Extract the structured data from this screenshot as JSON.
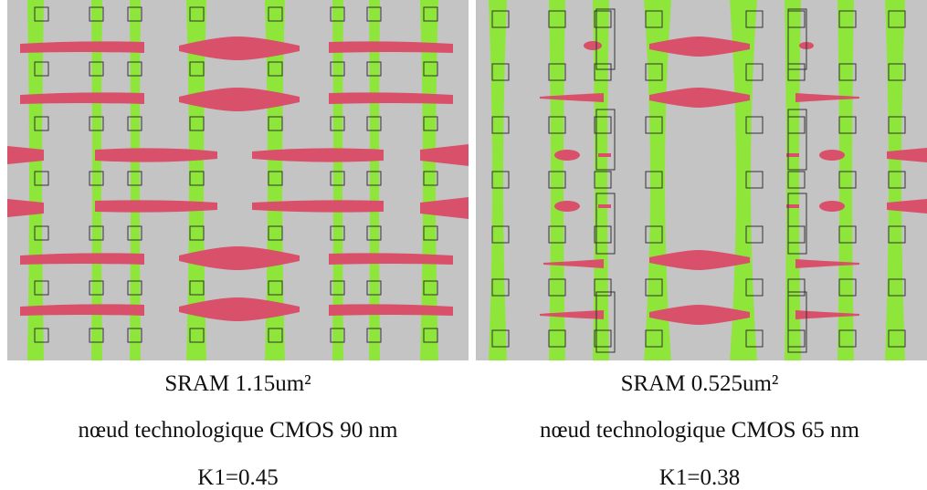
{
  "panels": [
    {
      "title": "SRAM 1.15um²",
      "node": "nœud technologique CMOS 90 nm",
      "k1": "K1=0.45"
    },
    {
      "title": "SRAM 0.525um²",
      "node": "nœud technologique CMOS 65 nm",
      "k1": "K1=0.38"
    }
  ],
  "colors": {
    "background": "#c4c4c4",
    "active_green": "#8ee63a",
    "poly_red": "#d9506a",
    "contact_outline": "#333333"
  }
}
